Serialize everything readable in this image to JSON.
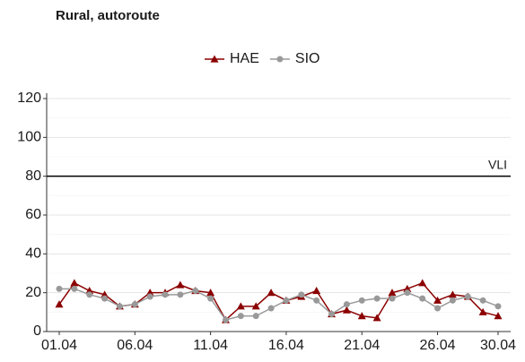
{
  "chart_data": {
    "type": "line",
    "title": "Rural, autoroute",
    "categories": [
      "01.04",
      null,
      null,
      null,
      null,
      "06.04",
      null,
      null,
      null,
      null,
      "11.04",
      null,
      null,
      null,
      null,
      "16.04",
      null,
      null,
      null,
      null,
      "21.04",
      null,
      null,
      null,
      null,
      "26.04",
      null,
      null,
      null,
      "30.04"
    ],
    "series": [
      {
        "name": "HAE",
        "color": "#8b0000",
        "marker": "triangle",
        "values": [
          14,
          25,
          21,
          19,
          13,
          14,
          20,
          20,
          24,
          21,
          20,
          6,
          13,
          13,
          20,
          16,
          18,
          21,
          9,
          11,
          8,
          7,
          20,
          22,
          25,
          16,
          19,
          18,
          10,
          8
        ]
      },
      {
        "name": "SIO",
        "color": "#999999",
        "marker": "circle",
        "values": [
          22,
          22,
          19,
          17,
          13,
          14,
          18,
          19,
          19,
          21,
          17,
          6,
          8,
          8,
          12,
          16,
          19,
          16,
          9,
          14,
          16,
          17,
          17,
          20,
          17,
          12,
          16,
          18,
          16,
          13
        ]
      }
    ],
    "ylim": [
      0,
      120
    ],
    "yticks": [
      0,
      20,
      40,
      60,
      80,
      100,
      120
    ],
    "grid": true,
    "reference_line": {
      "value": 80,
      "label": "VLI"
    },
    "legend": "top"
  }
}
